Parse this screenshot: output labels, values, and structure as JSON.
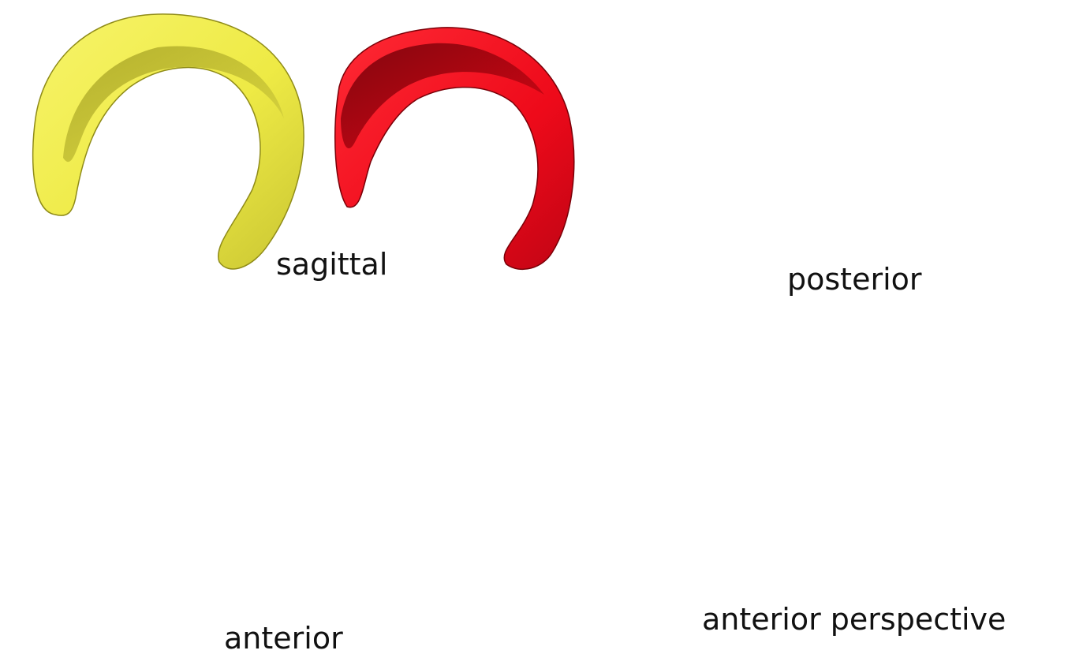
{
  "views": {
    "sagittal": "sagittal",
    "posterior": "posterior",
    "anterior": "anterior",
    "anterior_perspective": "anterior perspective"
  },
  "colors": {
    "yellow_shape": "#f2ef50",
    "yellow_shade": "#b9b52a",
    "red_shape": "#f20a1c",
    "red_shade": "#9c0010"
  }
}
